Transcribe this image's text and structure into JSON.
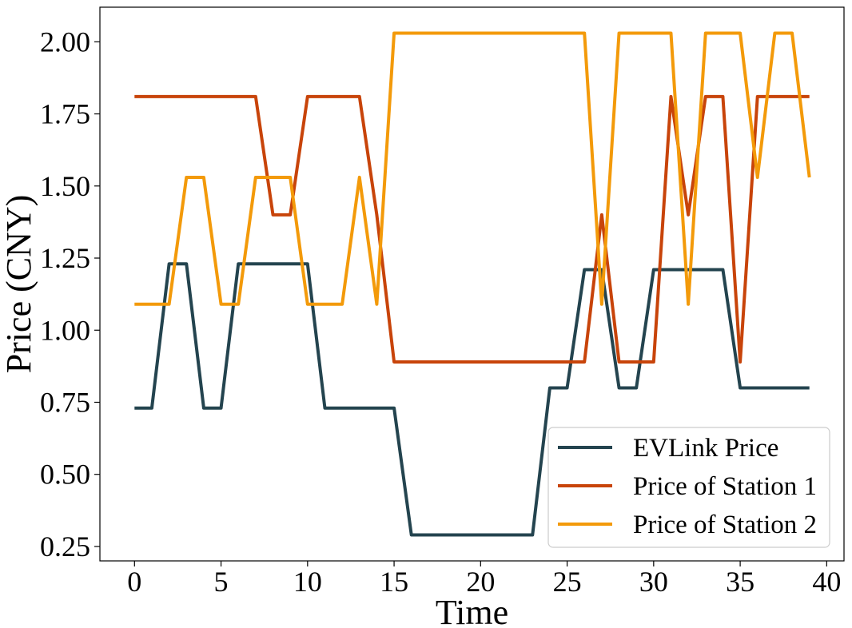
{
  "chart_data": {
    "type": "line",
    "title": "",
    "xlabel": "Time",
    "ylabel": "Price (CNY)",
    "xlim": [
      -2,
      41
    ],
    "ylim": [
      0.2,
      2.12
    ],
    "xticks": [
      0,
      5,
      10,
      15,
      20,
      25,
      30,
      35,
      40
    ],
    "xtick_labels": [
      "0",
      "5",
      "10",
      "15",
      "20",
      "25",
      "30",
      "35",
      "40"
    ],
    "yticks": [
      0.25,
      0.5,
      0.75,
      1.0,
      1.25,
      1.5,
      1.75,
      2.0
    ],
    "ytick_labels": [
      "0.25",
      "0.50",
      "0.75",
      "1.00",
      "1.25",
      "1.50",
      "1.75",
      "2.00"
    ],
    "grid": false,
    "legend_position": "lower-right",
    "x": [
      0,
      1,
      2,
      3,
      4,
      5,
      6,
      7,
      8,
      9,
      10,
      11,
      12,
      13,
      14,
      15,
      16,
      17,
      18,
      19,
      20,
      21,
      22,
      23,
      24,
      25,
      26,
      27,
      28,
      29,
      30,
      31,
      32,
      33,
      34,
      35,
      36,
      37,
      38,
      39
    ],
    "series": [
      {
        "name": "EVLink Price",
        "color": "#24444f",
        "values": [
          0.73,
          0.73,
          1.23,
          1.23,
          0.73,
          0.73,
          1.23,
          1.23,
          1.23,
          1.23,
          1.23,
          0.73,
          0.73,
          0.73,
          0.73,
          0.73,
          0.29,
          0.29,
          0.29,
          0.29,
          0.29,
          0.29,
          0.29,
          0.29,
          0.8,
          0.8,
          1.21,
          1.21,
          0.8,
          0.8,
          1.21,
          1.21,
          1.21,
          1.21,
          1.21,
          0.8,
          0.8,
          0.8,
          0.8,
          0.8
        ]
      },
      {
        "name": "Price of Station 1",
        "color": "#c8440a",
        "values": [
          1.81,
          1.81,
          1.81,
          1.81,
          1.81,
          1.81,
          1.81,
          1.81,
          1.4,
          1.4,
          1.81,
          1.81,
          1.81,
          1.81,
          1.4,
          0.89,
          0.89,
          0.89,
          0.89,
          0.89,
          0.89,
          0.89,
          0.89,
          0.89,
          0.89,
          0.89,
          0.89,
          1.4,
          0.89,
          0.89,
          0.89,
          1.81,
          1.4,
          1.81,
          1.81,
          0.89,
          1.81,
          1.81,
          1.81,
          1.81
        ]
      },
      {
        "name": "Price of Station 2",
        "color": "#f39a0a",
        "values": [
          1.09,
          1.09,
          1.09,
          1.53,
          1.53,
          1.09,
          1.09,
          1.53,
          1.53,
          1.53,
          1.09,
          1.09,
          1.09,
          1.53,
          1.09,
          2.03,
          2.03,
          2.03,
          2.03,
          2.03,
          2.03,
          2.03,
          2.03,
          2.03,
          2.03,
          2.03,
          2.03,
          1.09,
          2.03,
          2.03,
          2.03,
          2.03,
          1.09,
          2.03,
          2.03,
          2.03,
          1.53,
          2.03,
          2.03,
          1.53
        ]
      }
    ]
  }
}
